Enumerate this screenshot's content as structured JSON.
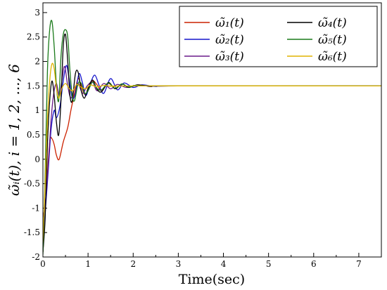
{
  "chart_data": {
    "type": "line",
    "xlabel": "Time(sec)",
    "ylabel": "ω̃ᵢ(t), i = 1, 2, ..., 6",
    "xlim": [
      0,
      7.5
    ],
    "ylim": [
      -2,
      3.2
    ],
    "x_ticks": [
      "0",
      "1",
      "2",
      "3",
      "4",
      "5",
      "6",
      "7"
    ],
    "y_ticks": [
      "-2",
      "-1.5",
      "-1",
      "-0.5",
      "0",
      "0.5",
      "1",
      "1.5",
      "2",
      "2.5",
      "3"
    ],
    "legend_position": "top-right",
    "series": [
      {
        "name": "ω̃₁(t)",
        "color": "#cc2200",
        "points": [
          [
            0,
            -1.9
          ],
          [
            0.08,
            -0.6
          ],
          [
            0.15,
            0.35
          ],
          [
            0.2,
            0.42
          ],
          [
            0.25,
            0.3
          ],
          [
            0.3,
            0.08
          ],
          [
            0.36,
            0.0
          ],
          [
            0.45,
            0.35
          ],
          [
            0.55,
            0.65
          ],
          [
            0.62,
            1.0
          ],
          [
            0.7,
            1.35
          ],
          [
            0.78,
            1.65
          ],
          [
            0.85,
            1.5
          ],
          [
            0.92,
            1.33
          ],
          [
            1.0,
            1.4
          ],
          [
            1.1,
            1.6
          ],
          [
            1.2,
            1.52
          ],
          [
            1.3,
            1.4
          ],
          [
            1.45,
            1.55
          ],
          [
            1.6,
            1.45
          ],
          [
            1.75,
            1.54
          ],
          [
            1.9,
            1.47
          ],
          [
            2.1,
            1.52
          ],
          [
            2.4,
            1.49
          ],
          [
            2.8,
            1.5
          ],
          [
            7.5,
            1.5
          ]
        ]
      },
      {
        "name": "ω̃₂(t)",
        "color": "#1515cc",
        "points": [
          [
            0,
            -1.6
          ],
          [
            0.05,
            -1.1
          ],
          [
            0.12,
            -0.2
          ],
          [
            0.18,
            0.6
          ],
          [
            0.25,
            1.0
          ],
          [
            0.3,
            0.85
          ],
          [
            0.38,
            1.1
          ],
          [
            0.45,
            1.6
          ],
          [
            0.52,
            1.92
          ],
          [
            0.58,
            1.65
          ],
          [
            0.65,
            1.25
          ],
          [
            0.72,
            1.35
          ],
          [
            0.8,
            1.75
          ],
          [
            0.88,
            1.55
          ],
          [
            0.95,
            1.3
          ],
          [
            1.05,
            1.55
          ],
          [
            1.15,
            1.72
          ],
          [
            1.25,
            1.5
          ],
          [
            1.35,
            1.35
          ],
          [
            1.5,
            1.65
          ],
          [
            1.65,
            1.42
          ],
          [
            1.8,
            1.56
          ],
          [
            2.0,
            1.47
          ],
          [
            2.2,
            1.52
          ],
          [
            2.5,
            1.49
          ],
          [
            3.0,
            1.5
          ],
          [
            7.5,
            1.5
          ]
        ]
      },
      {
        "name": "ω̃₃(t)",
        "color": "#6a1b8a",
        "points": [
          [
            0,
            -1.2
          ],
          [
            0.05,
            -0.9
          ],
          [
            0.12,
            -0.1
          ],
          [
            0.18,
            0.8
          ],
          [
            0.24,
            1.35
          ],
          [
            0.3,
            1.55
          ],
          [
            0.36,
            1.3
          ],
          [
            0.42,
            1.6
          ],
          [
            0.48,
            1.9
          ],
          [
            0.55,
            1.5
          ],
          [
            0.62,
            1.25
          ],
          [
            0.7,
            1.45
          ],
          [
            0.78,
            1.55
          ],
          [
            0.88,
            1.35
          ],
          [
            0.98,
            1.5
          ],
          [
            1.1,
            1.58
          ],
          [
            1.2,
            1.4
          ],
          [
            1.35,
            1.55
          ],
          [
            1.5,
            1.44
          ],
          [
            1.65,
            1.53
          ],
          [
            1.85,
            1.47
          ],
          [
            2.1,
            1.51
          ],
          [
            2.5,
            1.5
          ],
          [
            7.5,
            1.5
          ]
        ]
      },
      {
        "name": "ω̃₄(t)",
        "color": "#000000",
        "points": [
          [
            0,
            -1.9
          ],
          [
            0.05,
            -1.2
          ],
          [
            0.1,
            0.3
          ],
          [
            0.15,
            1.2
          ],
          [
            0.2,
            1.6
          ],
          [
            0.25,
            1.3
          ],
          [
            0.3,
            0.75
          ],
          [
            0.35,
            0.5
          ],
          [
            0.4,
            1.2
          ],
          [
            0.45,
            2.3
          ],
          [
            0.5,
            2.55
          ],
          [
            0.55,
            2.0
          ],
          [
            0.6,
            1.3
          ],
          [
            0.65,
            1.2
          ],
          [
            0.72,
            1.75
          ],
          [
            0.78,
            1.78
          ],
          [
            0.85,
            1.4
          ],
          [
            0.92,
            1.25
          ],
          [
            1.0,
            1.45
          ],
          [
            1.1,
            1.62
          ],
          [
            1.2,
            1.43
          ],
          [
            1.3,
            1.38
          ],
          [
            1.45,
            1.57
          ],
          [
            1.6,
            1.44
          ],
          [
            1.75,
            1.54
          ],
          [
            1.9,
            1.47
          ],
          [
            2.1,
            1.52
          ],
          [
            2.4,
            1.49
          ],
          [
            2.8,
            1.5
          ],
          [
            7.5,
            1.5
          ]
        ]
      },
      {
        "name": "ω̃₅(t)",
        "color": "#1a7a1a",
        "points": [
          [
            0,
            -1.95
          ],
          [
            0.05,
            -0.3
          ],
          [
            0.1,
            1.8
          ],
          [
            0.15,
            2.65
          ],
          [
            0.2,
            2.82
          ],
          [
            0.25,
            2.3
          ],
          [
            0.3,
            1.5
          ],
          [
            0.35,
            1.2
          ],
          [
            0.4,
            2.1
          ],
          [
            0.45,
            2.55
          ],
          [
            0.5,
            2.65
          ],
          [
            0.55,
            2.5
          ],
          [
            0.6,
            1.8
          ],
          [
            0.65,
            1.3
          ],
          [
            0.7,
            1.2
          ],
          [
            0.78,
            1.55
          ],
          [
            0.85,
            1.55
          ],
          [
            0.92,
            1.35
          ],
          [
            1.0,
            1.4
          ],
          [
            1.1,
            1.58
          ],
          [
            1.2,
            1.45
          ],
          [
            1.3,
            1.42
          ],
          [
            1.45,
            1.56
          ],
          [
            1.6,
            1.45
          ],
          [
            1.75,
            1.54
          ],
          [
            1.9,
            1.48
          ],
          [
            2.1,
            1.51
          ],
          [
            2.5,
            1.5
          ],
          [
            7.5,
            1.5
          ]
        ]
      },
      {
        "name": "ω̃₆(t)",
        "color": "#e0b400",
        "points": [
          [
            0,
            -1.7
          ],
          [
            0.05,
            -0.5
          ],
          [
            0.1,
            0.8
          ],
          [
            0.15,
            1.6
          ],
          [
            0.2,
            1.95
          ],
          [
            0.25,
            1.85
          ],
          [
            0.3,
            1.45
          ],
          [
            0.35,
            1.25
          ],
          [
            0.42,
            1.45
          ],
          [
            0.5,
            1.55
          ],
          [
            0.58,
            1.45
          ],
          [
            0.66,
            1.4
          ],
          [
            0.75,
            1.53
          ],
          [
            0.85,
            1.47
          ],
          [
            0.95,
            1.44
          ],
          [
            1.05,
            1.52
          ],
          [
            1.2,
            1.48
          ],
          [
            1.35,
            1.51
          ],
          [
            1.6,
            1.49
          ],
          [
            2.0,
            1.5
          ],
          [
            7.5,
            1.5
          ]
        ]
      }
    ]
  }
}
